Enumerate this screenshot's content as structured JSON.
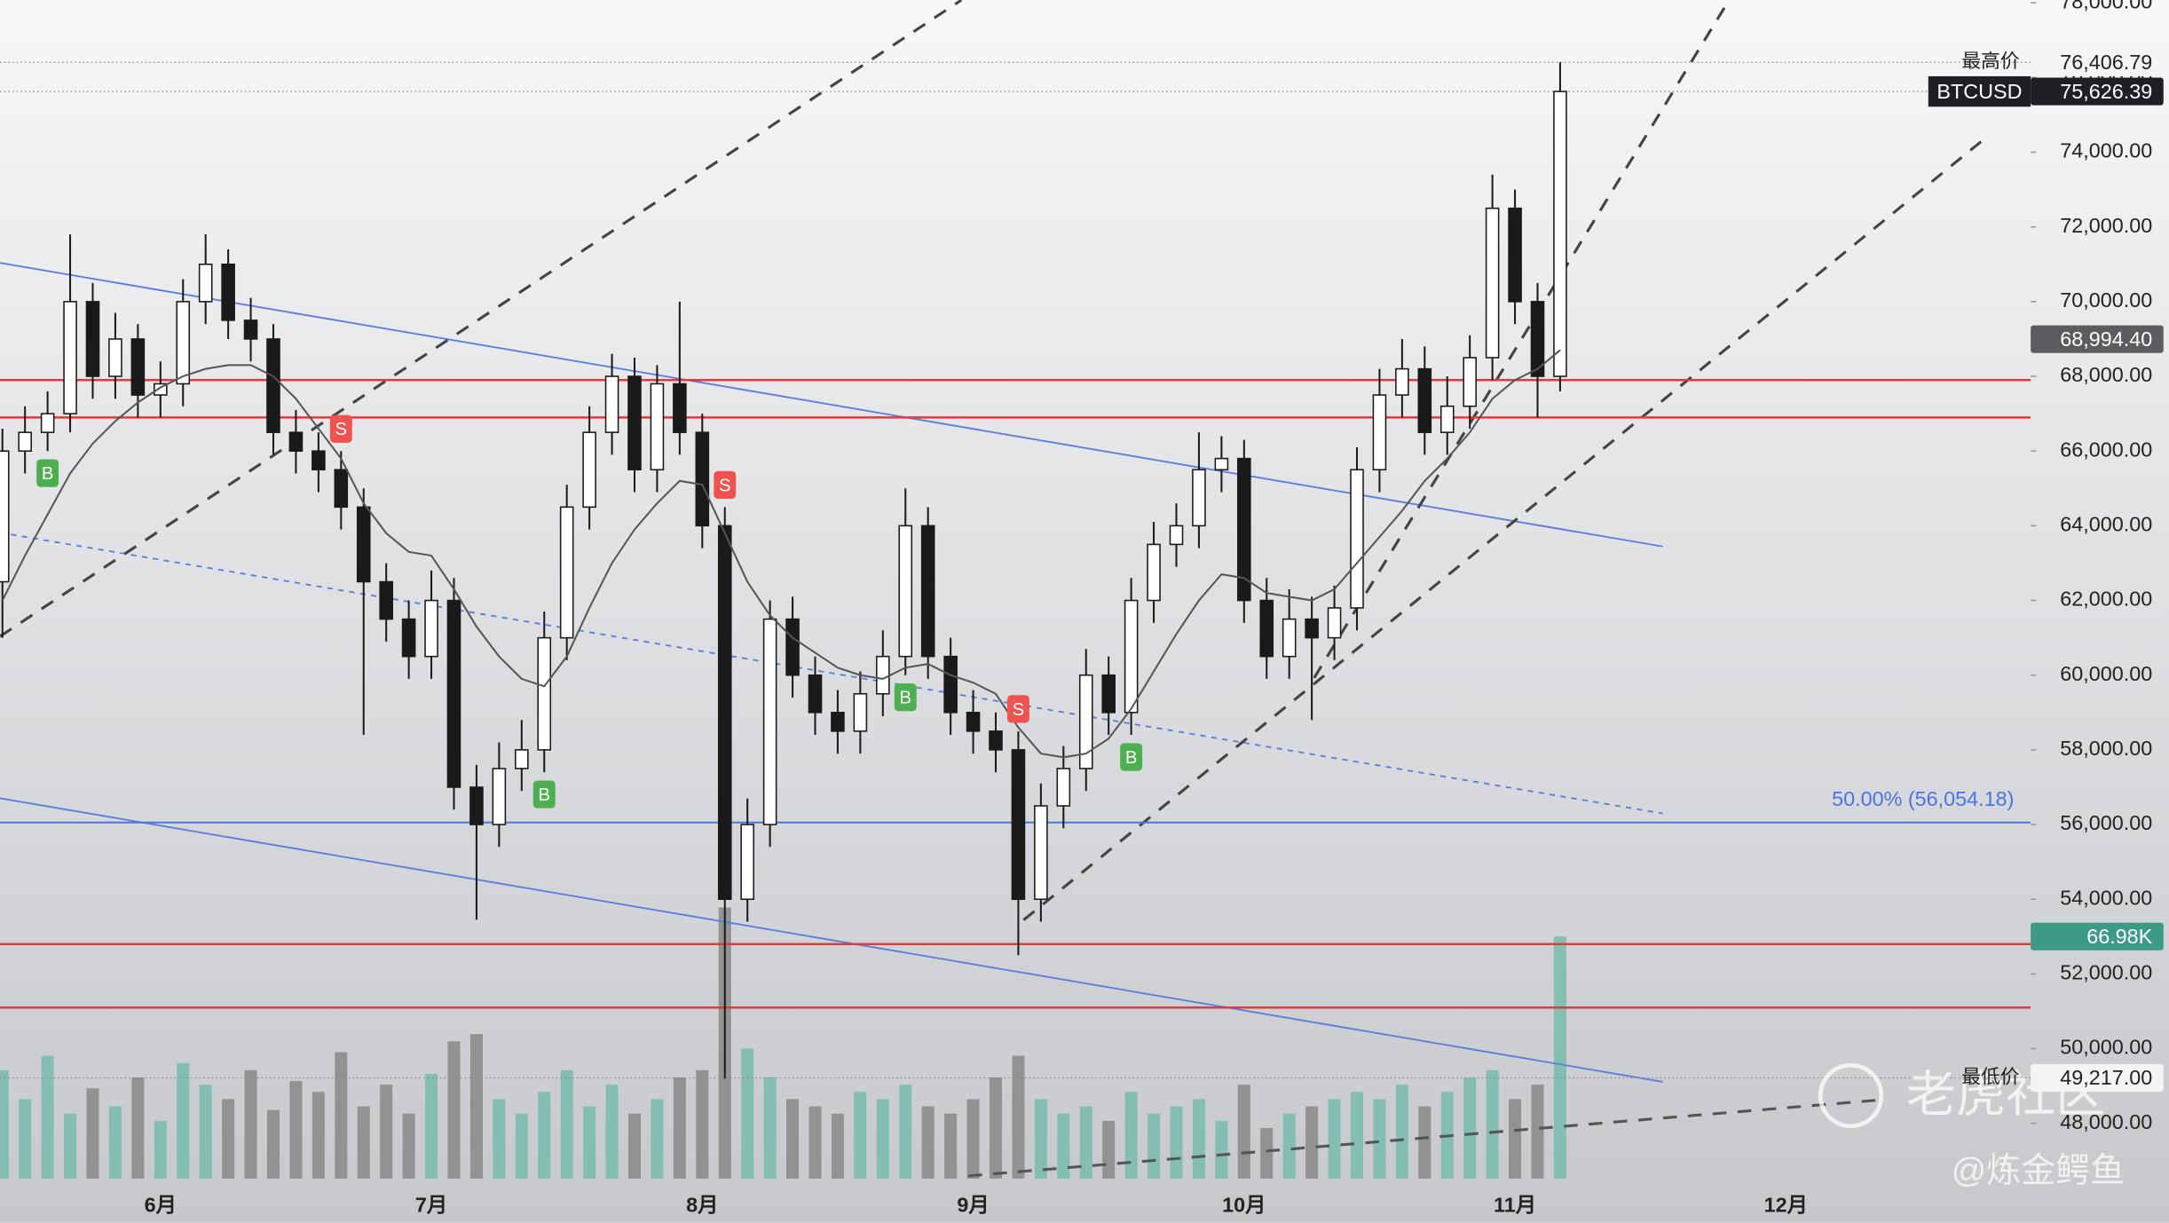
{
  "chart_data": {
    "type": "candlestick",
    "categories": [
      null,
      null,
      null,
      null,
      null,
      null,
      null,
      "6月",
      null,
      null,
      null,
      null,
      null,
      null,
      null,
      null,
      null,
      null,
      null,
      "7月",
      null,
      null,
      null,
      null,
      null,
      null,
      null,
      null,
      null,
      null,
      null,
      "8月",
      null,
      null,
      null,
      null,
      null,
      null,
      null,
      null,
      null,
      null,
      null,
      "9月",
      null,
      null,
      null,
      null,
      null,
      null,
      null,
      null,
      null,
      null,
      null,
      "10月",
      null,
      null,
      null,
      null,
      null,
      null,
      null,
      null,
      null,
      null,
      null,
      "11月",
      null,
      null,
      null,
      null,
      null,
      null,
      null,
      null,
      null,
      null,
      null,
      "12月",
      null,
      null,
      null,
      null,
      null,
      null,
      null,
      null,
      null,
      null
    ],
    "open": [
      62500,
      66000,
      66500,
      67000,
      70000,
      68000,
      69000,
      67500,
      67800,
      70000,
      71000,
      69500,
      69000,
      66500,
      66000,
      65500,
      64500,
      62500,
      61500,
      60500,
      62000,
      57000,
      56000,
      57500,
      58000,
      61000,
      64500,
      66500,
      68000,
      65500,
      67800,
      66500,
      64000,
      54000,
      56000,
      61500,
      60000,
      59000,
      58500,
      59500,
      60500,
      64000,
      60500,
      59000,
      58500,
      58000,
      54000,
      56500,
      57500,
      60000,
      59000,
      62000,
      63500,
      64000,
      65500,
      65800,
      62000,
      60500,
      61500,
      61000,
      61800,
      65500,
      67500,
      68200,
      66500,
      67200,
      68500,
      72500,
      70000,
      68000,
      null,
      null,
      null,
      null,
      null,
      null,
      null,
      null,
      null,
      null,
      null,
      null,
      null,
      null,
      null,
      null,
      null,
      null,
      null,
      null
    ],
    "high": [
      66600,
      67200,
      67600,
      71800,
      70500,
      69700,
      69400,
      68400,
      70600,
      71800,
      71400,
      70100,
      69400,
      67100,
      66500,
      66000,
      65000,
      63000,
      62000,
      62800,
      62600,
      57600,
      58200,
      58800,
      61700,
      65100,
      67200,
      68600,
      68500,
      68300,
      70000,
      67000,
      64500,
      56700,
      62000,
      62100,
      60500,
      59600,
      60100,
      61200,
      65000,
      64500,
      61000,
      59600,
      59000,
      58500,
      57100,
      58100,
      60700,
      60500,
      62600,
      64100,
      64600,
      66500,
      66400,
      66300,
      62600,
      62300,
      62100,
      62400,
      66100,
      68200,
      69000,
      68800,
      68000,
      69100,
      73400,
      73000,
      70500,
      76406.79,
      null,
      null,
      null,
      null,
      null,
      null,
      null,
      null,
      null,
      null,
      null,
      null,
      null,
      null,
      null,
      null,
      null,
      null,
      null,
      null
    ],
    "low": [
      61000,
      65400,
      66000,
      66500,
      67400,
      67400,
      66900,
      66900,
      67200,
      69400,
      69000,
      68400,
      65900,
      65400,
      64900,
      63900,
      58400,
      60900,
      59900,
      59900,
      56400,
      53450,
      55400,
      56900,
      57400,
      60400,
      63900,
      65900,
      64900,
      64900,
      65900,
      63400,
      49200,
      53400,
      55400,
      59400,
      58400,
      57900,
      57900,
      58900,
      60000,
      59900,
      58400,
      57900,
      57400,
      52500,
      53400,
      55900,
      56900,
      58400,
      58400,
      61400,
      62900,
      63400,
      64900,
      61400,
      59900,
      59900,
      58800,
      60400,
      61200,
      64900,
      66900,
      65900,
      65900,
      66600,
      67900,
      69400,
      66900,
      67600,
      null,
      null,
      null,
      null,
      null,
      null,
      null,
      null,
      null,
      null,
      null,
      null,
      null,
      null,
      null,
      null,
      null,
      null,
      null,
      null
    ],
    "close": [
      66000,
      66500,
      67000,
      70000,
      68000,
      69000,
      67500,
      67800,
      70000,
      71000,
      69500,
      69000,
      66500,
      66000,
      65500,
      64500,
      62500,
      61500,
      60500,
      62000,
      57000,
      56000,
      57500,
      58000,
      61000,
      64500,
      66500,
      68000,
      65500,
      67800,
      66500,
      64000,
      54000,
      56000,
      61500,
      60000,
      59000,
      58500,
      59500,
      60500,
      64000,
      60500,
      59000,
      58500,
      58000,
      54000,
      56500,
      57500,
      60000,
      59000,
      62000,
      63500,
      64000,
      65500,
      65800,
      62000,
      60500,
      61500,
      61000,
      61800,
      65500,
      67500,
      68200,
      66500,
      67200,
      68500,
      72500,
      70000,
      68000,
      75626.39,
      null,
      null,
      null,
      null,
      null,
      null,
      null,
      null,
      null,
      null,
      null,
      null,
      null,
      null,
      null,
      null,
      null,
      null,
      null,
      null
    ],
    "ma": [
      62000,
      63200,
      64300,
      65400,
      66200,
      66800,
      67300,
      67700,
      68000,
      68200,
      68300,
      68300,
      68000,
      67400,
      66600,
      65800,
      64600,
      63800,
      63300,
      63200,
      62300,
      61300,
      60500,
      59900,
      59700,
      60500,
      61800,
      63000,
      63900,
      64600,
      65200,
      65100,
      63800,
      62500,
      61600,
      61000,
      60600,
      60200,
      60000,
      59900,
      60200,
      60300,
      60000,
      59800,
      59500,
      58600,
      57900,
      57800,
      57900,
      58300,
      59100,
      60100,
      61100,
      62000,
      62700,
      62600,
      62200,
      62100,
      62000,
      62300,
      63000,
      63700,
      64400,
      65200,
      65800,
      66500,
      67400,
      67900,
      68200,
      68700,
      null,
      null,
      null,
      null,
      null,
      null,
      null,
      null,
      null,
      null,
      null,
      null,
      null,
      null,
      null,
      null,
      null,
      null,
      null,
      null
    ],
    "up_color": "#ffffff",
    "down_color": "#1a1a1a",
    "ma_color": "#555555",
    "ylim": [
      46519,
      78074
    ],
    "yticks": [
      {
        "value": 48000,
        "label": "48,000.00"
      },
      {
        "value": 50000,
        "label": "50,000.00"
      },
      {
        "value": 52000,
        "label": "52,000.00"
      },
      {
        "value": 54000,
        "label": "54,000.00"
      },
      {
        "value": 56000,
        "label": "56,000.00"
      },
      {
        "value": 58000,
        "label": "58,000.00"
      },
      {
        "value": 60000,
        "label": "60,000.00"
      },
      {
        "value": 62000,
        "label": "62,000.00"
      },
      {
        "value": 64000,
        "label": "64,000.00"
      },
      {
        "value": 66000,
        "label": "66,000.00"
      },
      {
        "value": 68000,
        "label": "68,000.00"
      },
      {
        "value": 70000,
        "label": "70,000.00"
      },
      {
        "value": 72000,
        "label": "72,000.00"
      },
      {
        "value": 74000,
        "label": "74,000.00"
      },
      {
        "value": 76000,
        "label": "76,000.00"
      },
      {
        "value": 78000,
        "label": "78,000.00"
      }
    ],
    "volume": {
      "values": [
        30,
        22,
        34,
        18,
        25,
        20,
        28,
        16,
        32,
        26,
        22,
        30,
        19,
        27,
        24,
        35,
        20,
        26,
        18,
        29,
        38,
        40,
        22,
        18,
        24,
        30,
        20,
        26,
        18,
        22,
        28,
        30,
        75,
        36,
        28,
        22,
        20,
        18,
        24,
        22,
        26,
        20,
        18,
        22,
        28,
        34,
        22,
        18,
        20,
        16,
        24,
        18,
        20,
        22,
        16,
        26,
        14,
        18,
        20,
        22,
        24,
        22,
        26,
        20,
        24,
        28,
        30,
        22,
        26,
        66.98,
        null,
        null,
        null,
        null,
        null,
        null,
        null,
        null,
        null,
        null,
        null,
        null,
        null,
        null,
        null,
        null,
        null,
        null,
        null,
        null
      ],
      "value_labels": [
        null,
        null,
        null,
        null,
        null,
        null,
        null,
        null,
        null,
        null,
        null,
        null,
        null,
        null,
        null,
        null,
        null,
        null,
        null,
        null,
        null,
        null,
        null,
        null,
        null,
        null,
        null,
        null,
        null,
        null,
        null,
        null,
        null,
        null,
        null,
        null,
        null,
        null,
        null,
        null,
        null,
        null,
        null,
        null,
        null,
        null,
        null,
        null,
        null,
        null,
        null,
        null,
        null,
        null,
        null,
        null,
        null,
        null,
        null,
        null,
        null,
        null,
        null,
        null,
        null,
        null,
        null,
        null,
        null,
        "66.98K",
        null,
        null,
        null,
        null,
        null,
        null,
        null,
        null,
        null,
        null,
        null,
        null,
        null,
        null,
        null,
        null,
        null,
        null,
        null,
        null
      ],
      "ylim": [
        0,
        326
      ],
      "up_color": "#7cbdae",
      "down_color": "#8c8c8c",
      "label_color": "#3d9a86"
    },
    "levels": {
      "values": [
        67900,
        66900,
        52800,
        51100
      ],
      "color": "#e0393e"
    },
    "fib": {
      "value": 56054.18,
      "label": "50.00% (56,054.18)",
      "color": "#4a74e0"
    },
    "high_marker": {
      "text": "最高价",
      "value": 76406.79,
      "label": "76,406.79"
    },
    "last_price": {
      "symbol": "BTCUSD",
      "value": 75626.39,
      "label": "75,626.39"
    },
    "price_tag": {
      "value": 68994.4,
      "label": "68,994.40"
    },
    "low_marker": {
      "text": "最低价",
      "value": 49217,
      "label": "49,217.00"
    },
    "signals": [
      {
        "index": 2,
        "label": "B"
      },
      {
        "index": 15,
        "label": "S"
      },
      {
        "index": 24,
        "label": "B"
      },
      {
        "index": 32,
        "label": "S"
      },
      {
        "index": 40,
        "label": "B"
      },
      {
        "index": 45,
        "label": "S"
      },
      {
        "index": 50,
        "label": "B"
      }
    ],
    "signal_colors": {
      "B": "#4caf50",
      "S": "#ef5350"
    },
    "watermark": "老虎社区",
    "author": "@炼金鳄鱼"
  }
}
